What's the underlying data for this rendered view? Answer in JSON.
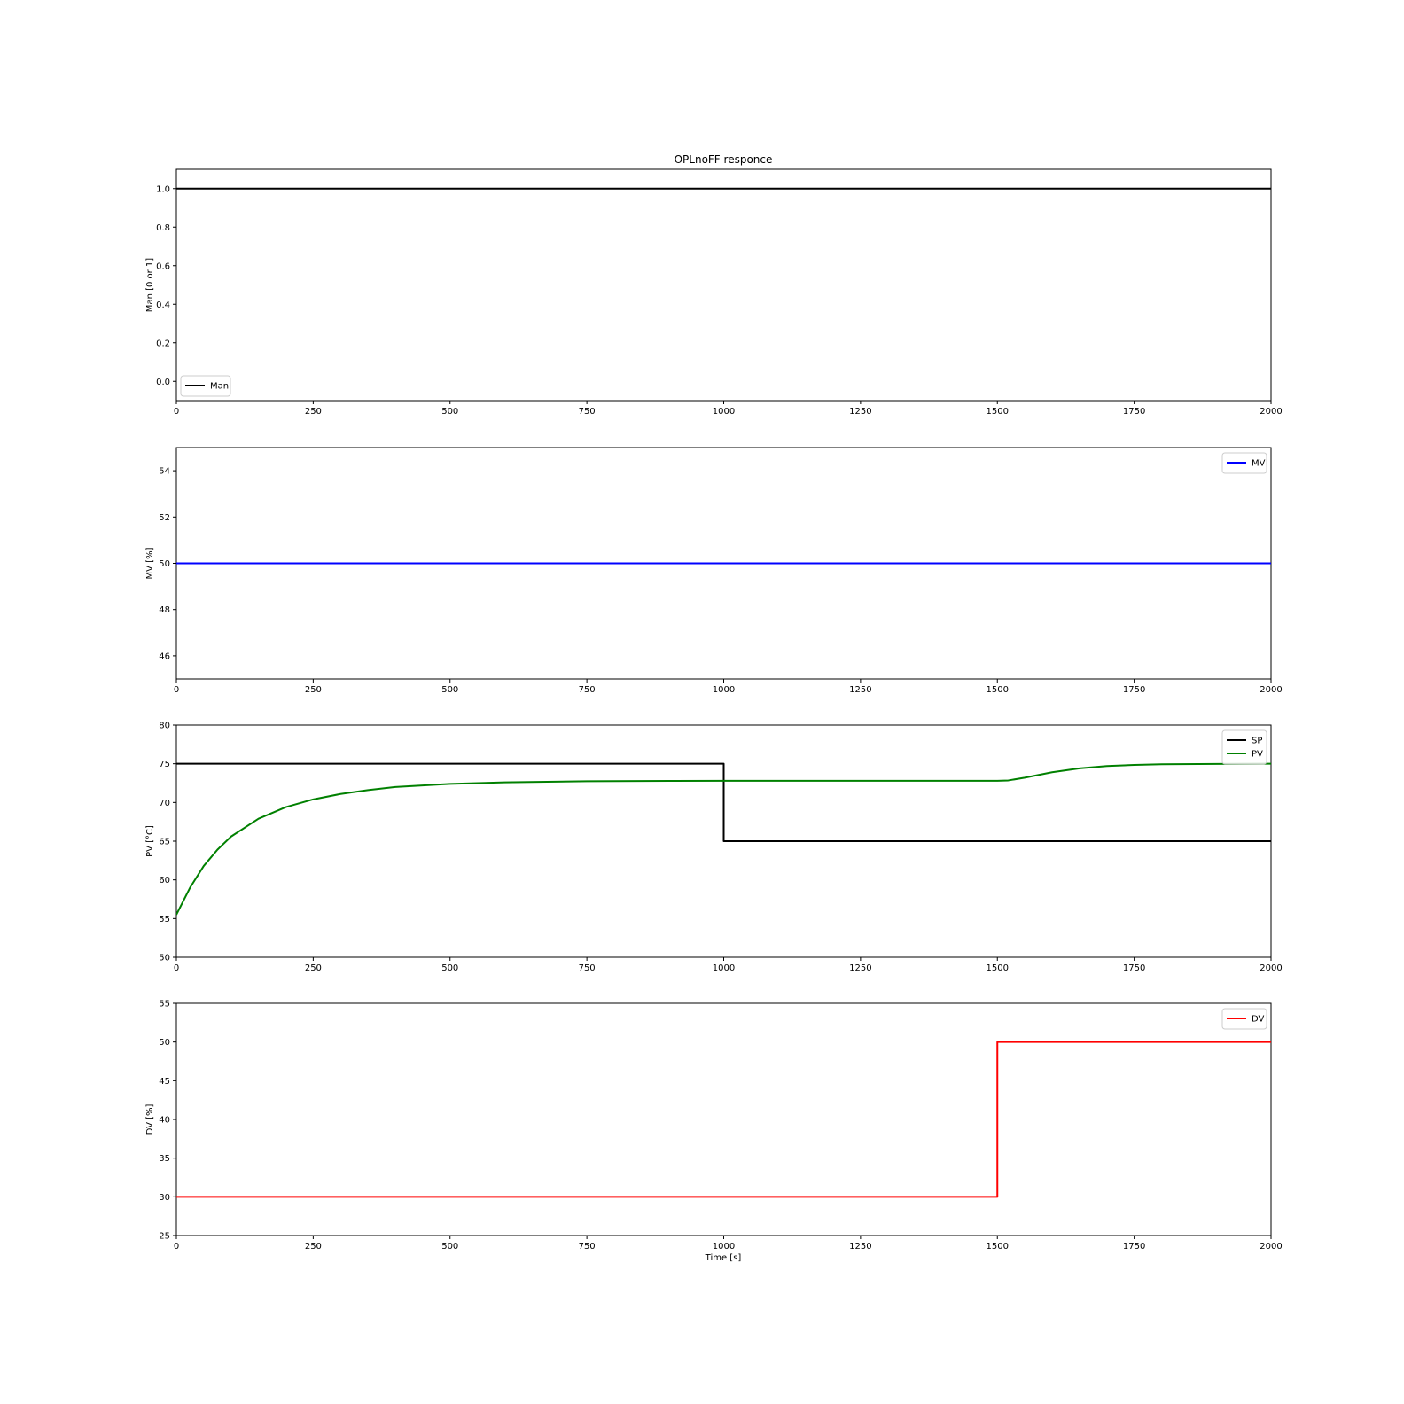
{
  "title": "OPLnoFF responce",
  "xlabel": "Time [s]",
  "chart_data": [
    {
      "type": "line",
      "ylabel": "Man [0 or 1]",
      "xlim": [
        0,
        2000
      ],
      "ylim": [
        -0.1,
        1.1
      ],
      "xticks": [
        0,
        250,
        500,
        750,
        1000,
        1250,
        1500,
        1750,
        2000
      ],
      "yticks": [
        0.0,
        0.2,
        0.4,
        0.6,
        0.8,
        1.0
      ],
      "ytick_labels": [
        "0.0",
        "0.2",
        "0.4",
        "0.6",
        "0.8",
        "1.0"
      ],
      "legend_position": "lower-left",
      "series": [
        {
          "name": "Man",
          "color": "#000000",
          "x": [
            0,
            2000
          ],
          "y": [
            1.0,
            1.0
          ]
        }
      ]
    },
    {
      "type": "line",
      "ylabel": "MV [%]",
      "xlim": [
        0,
        2000
      ],
      "ylim": [
        45,
        55
      ],
      "xticks": [
        0,
        250,
        500,
        750,
        1000,
        1250,
        1500,
        1750,
        2000
      ],
      "yticks": [
        46,
        48,
        50,
        52,
        54
      ],
      "ytick_labels": [
        "46",
        "48",
        "50",
        "52",
        "54"
      ],
      "legend_position": "upper-right",
      "series": [
        {
          "name": "MV",
          "color": "#0000ff",
          "x": [
            0,
            2000
          ],
          "y": [
            50,
            50
          ]
        }
      ]
    },
    {
      "type": "line",
      "ylabel": "PV [°C]",
      "xlim": [
        0,
        2000
      ],
      "ylim": [
        50,
        80
      ],
      "xticks": [
        0,
        250,
        500,
        750,
        1000,
        1250,
        1500,
        1750,
        2000
      ],
      "yticks": [
        50,
        55,
        60,
        65,
        70,
        75,
        80
      ],
      "ytick_labels": [
        "50",
        "55",
        "60",
        "65",
        "70",
        "75",
        "80"
      ],
      "legend_position": "upper-right",
      "series": [
        {
          "name": "SP",
          "color": "#000000",
          "x": [
            0,
            1000,
            1000,
            2000
          ],
          "y": [
            75,
            75,
            65,
            65
          ]
        },
        {
          "name": "PV",
          "color": "#008000",
          "x": [
            0,
            25,
            50,
            75,
            100,
            150,
            200,
            250,
            300,
            350,
            400,
            500,
            600,
            750,
            900,
            1000,
            1250,
            1500,
            1520,
            1550,
            1600,
            1650,
            1700,
            1750,
            1800,
            1900,
            2000
          ],
          "y": [
            55.5,
            59.0,
            61.8,
            63.9,
            65.6,
            67.9,
            69.4,
            70.4,
            71.1,
            71.6,
            72.0,
            72.4,
            72.6,
            72.75,
            72.78,
            72.8,
            72.8,
            72.8,
            72.85,
            73.2,
            73.9,
            74.4,
            74.7,
            74.85,
            74.93,
            74.98,
            75.0
          ]
        }
      ]
    },
    {
      "type": "line",
      "ylabel": "DV [%]",
      "xlim": [
        0,
        2000
      ],
      "ylim": [
        25,
        55
      ],
      "xticks": [
        0,
        250,
        500,
        750,
        1000,
        1250,
        1500,
        1750,
        2000
      ],
      "yticks": [
        25,
        30,
        35,
        40,
        45,
        50,
        55
      ],
      "ytick_labels": [
        "25",
        "30",
        "35",
        "40",
        "45",
        "50",
        "55"
      ],
      "legend_position": "upper-right",
      "series": [
        {
          "name": "DV",
          "color": "#ff0000",
          "x": [
            0,
            1500,
            1500,
            2000
          ],
          "y": [
            30,
            30,
            50,
            50
          ]
        }
      ]
    }
  ]
}
